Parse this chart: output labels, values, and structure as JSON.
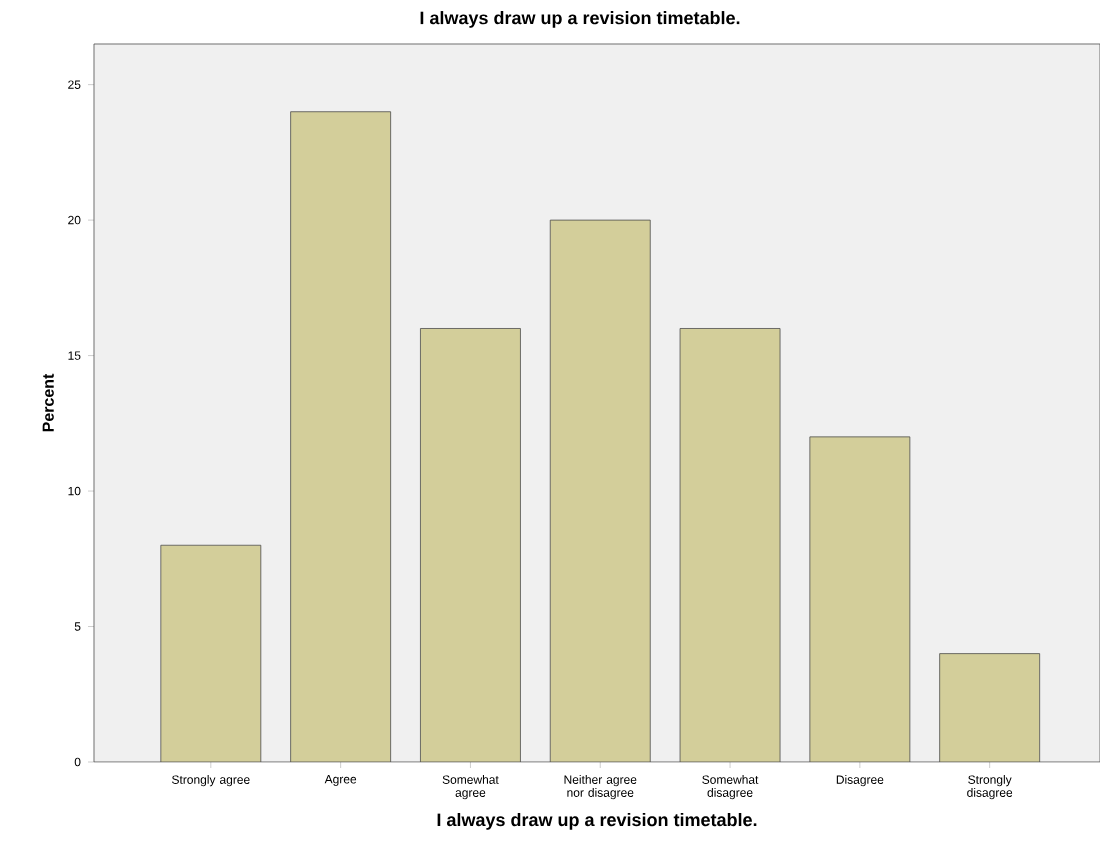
{
  "chart_data": {
    "type": "bar",
    "title": "I always draw up a revision timetable.",
    "xlabel": "I always draw up a revision timetable.",
    "ylabel": "Percent",
    "categories": [
      "Strongly agree",
      "Agree",
      "Somewhat agree",
      "Neither agree nor disagree",
      "Somewhat disagree",
      "Disagree",
      "Strongly disagree"
    ],
    "values": [
      8,
      24,
      16,
      20,
      16,
      12,
      4
    ],
    "color": "#d3ce9a",
    "ylim": [
      0,
      26.5
    ],
    "yticks": [
      0,
      5,
      10,
      15,
      20,
      25
    ],
    "grid": false
  }
}
